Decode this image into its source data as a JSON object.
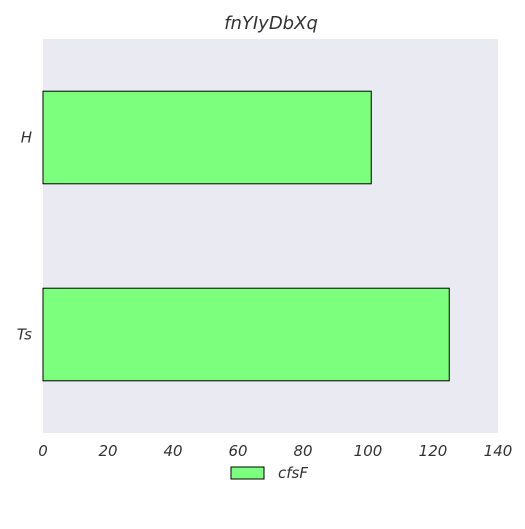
{
  "chart_data": {
    "type": "bar",
    "orientation": "horizontal",
    "title": "fnYIyDbXq",
    "xlabel": "",
    "ylabel": "",
    "categories": [
      "H",
      "Ts"
    ],
    "series": [
      {
        "name": "cfsF",
        "values": [
          101,
          125
        ],
        "color": "#7cff7c"
      }
    ],
    "xlim": [
      0,
      140
    ],
    "xticks": [
      0,
      20,
      40,
      60,
      80,
      100,
      120,
      140
    ],
    "grid": false,
    "legend": "bottom-center",
    "plot_background": "#eaeaf2",
    "bar_edge_color": "#000000"
  }
}
